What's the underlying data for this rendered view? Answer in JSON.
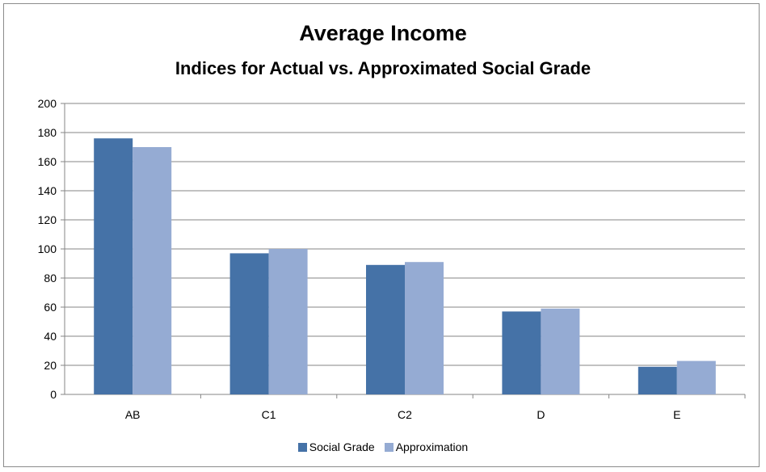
{
  "chart_data": {
    "type": "bar",
    "title": "Average Income",
    "subtitle": "Indices for Actual vs. Approximated Social Grade",
    "categories": [
      "AB",
      "C1",
      "C2",
      "D",
      "E"
    ],
    "series": [
      {
        "name": "Social Grade",
        "values": [
          176,
          97,
          89,
          57,
          19
        ],
        "color": "#4572a7"
      },
      {
        "name": "Approximation",
        "values": [
          170,
          100,
          91,
          59,
          23
        ],
        "color": "#95abd3"
      }
    ],
    "ylim": [
      0,
      200
    ],
    "yticks": [
      "0",
      "20",
      "40",
      "60",
      "80",
      "100",
      "120",
      "140",
      "160",
      "180",
      "200"
    ],
    "grid": true,
    "legend_position": "bottom"
  }
}
